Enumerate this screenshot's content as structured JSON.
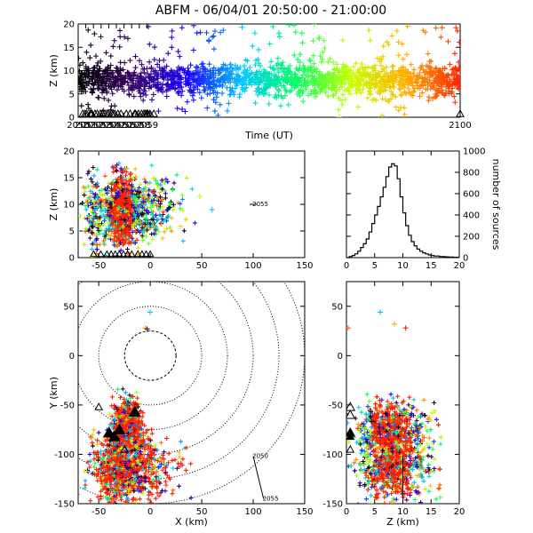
{
  "title": "ABFM - 06/04/01 20:50:00 - 21:00:00",
  "colors": {
    "ramp": [
      "#000000",
      "#3a0066",
      "#1a00ff",
      "#00c8ff",
      "#00ff60",
      "#c8ff00",
      "#ffb000",
      "#ff2000"
    ],
    "tags": "#000000",
    "frame": "#000000"
  },
  "chart_data": [
    {
      "id": "time-height",
      "type": "scatter",
      "xlabel": "Time (UT)",
      "ylabel": "Z (km)",
      "xlim": [
        2050,
        2100
      ],
      "ylim": [
        0,
        20
      ],
      "xticks": [
        "2050",
        "2051",
        "2052",
        "2053",
        "2054",
        "2055",
        "2056",
        "2057",
        "2058",
        "2059",
        "2100"
      ],
      "yticks": [
        "0",
        "5",
        "10",
        "15",
        "20"
      ],
      "color_by": "time",
      "point_count_shown": "about 2000 plotted sources",
      "z_core_range": [
        4,
        12
      ],
      "z_mode": 8,
      "triangle_markers_x": [
        2050.6,
        2050.9,
        2051.1,
        2051.6,
        2051.7,
        2051.8,
        2052.2,
        2052.5,
        2052.9,
        2053.2,
        2053.5,
        2053.8,
        2054.0,
        2054.4,
        2054.6,
        2054.8,
        2055.2,
        2055.6,
        2056.3,
        2056.8,
        2057.4,
        2057.5,
        2057.9,
        2058.3,
        2058.6,
        2058.8,
        2059.0,
        2059.1,
        2059.4,
        2059.9,
        2100.0
      ],
      "reference_line_z": 10
    },
    {
      "id": "x-z",
      "type": "scatter",
      "xlabel": "",
      "ylabel": "Z (km)",
      "xlim": [
        -70,
        150
      ],
      "ylim": [
        0,
        20
      ],
      "xticks": [
        "-50",
        "0",
        "50",
        "100",
        "150"
      ],
      "yticks": [
        "0",
        "5",
        "10",
        "15",
        "20"
      ],
      "color_by": "time",
      "cluster_x_range": [
        -60,
        30
      ],
      "core_x_range": [
        -40,
        -15
      ],
      "station_label": {
        "text": "2055",
        "x": 100,
        "z": 10
      },
      "triangle_markers_x": [
        -55,
        -48,
        -42,
        -38,
        -34,
        -30,
        -26,
        -22,
        -18,
        -12,
        -8,
        -4,
        0
      ]
    },
    {
      "id": "z-histogram",
      "type": "bar",
      "xlabel": "",
      "ylabel": "number of sources",
      "xlim": [
        0,
        20
      ],
      "ylim": [
        0,
        1000
      ],
      "xticks": [
        "0",
        "5",
        "10",
        "15",
        "20"
      ],
      "yticks": [
        "0",
        "200",
        "400",
        "600",
        "800",
        "1000"
      ],
      "bin_width_km": 0.5,
      "bin_starts": [
        0,
        0.5,
        1,
        1.5,
        2,
        2.5,
        3,
        3.5,
        4,
        4.5,
        5,
        5.5,
        6,
        6.5,
        7,
        7.5,
        8,
        8.5,
        9,
        9.5,
        10,
        10.5,
        11,
        11.5,
        12,
        12.5,
        13,
        13.5,
        14,
        14.5,
        15,
        15.5,
        16,
        16.5,
        17,
        17.5,
        18,
        18.5,
        19,
        19.5
      ],
      "values": [
        0,
        10,
        20,
        35,
        60,
        95,
        130,
        175,
        240,
        320,
        400,
        480,
        570,
        660,
        760,
        850,
        880,
        860,
        740,
        570,
        420,
        300,
        210,
        150,
        110,
        80,
        60,
        45,
        35,
        25,
        20,
        15,
        15,
        10,
        10,
        8,
        5,
        5,
        3,
        2
      ]
    },
    {
      "id": "plan-view",
      "type": "scatter",
      "xlabel": "X (km)",
      "ylabel": "Y (km)",
      "xlim": [
        -70,
        150
      ],
      "ylim": [
        -150,
        75
      ],
      "xticks": [
        "-50",
        "0",
        "50",
        "100",
        "150"
      ],
      "yticks": [
        "-150",
        "-100",
        "-50",
        "0",
        "50"
      ],
      "color_by": "time",
      "range_rings_km": [
        25,
        50,
        75,
        100,
        125,
        150
      ],
      "cluster_x_range": [
        -60,
        30
      ],
      "cluster_y_range": [
        -150,
        -40
      ],
      "stations": [
        {
          "x": -50,
          "y": -52,
          "size": "small"
        },
        {
          "x": -40,
          "y": -78,
          "size": "large"
        },
        {
          "x": -35,
          "y": -82,
          "size": "large"
        },
        {
          "x": -30,
          "y": -75,
          "size": "large"
        },
        {
          "x": -15,
          "y": -57,
          "size": "large"
        },
        {
          "x": -25,
          "y": -95,
          "size": "small"
        }
      ],
      "track_labels": [
        {
          "text": "2050",
          "x": 100,
          "y": -102
        },
        {
          "text": "2055",
          "x": 110,
          "y": -145
        }
      ]
    },
    {
      "id": "z-y",
      "type": "scatter",
      "xlabel": "Z (km)",
      "ylabel": "",
      "xlim": [
        0,
        20
      ],
      "ylim": [
        -150,
        75
      ],
      "xticks": [
        "0",
        "5",
        "10",
        "15",
        "20"
      ],
      "yticks": [
        "-150",
        "-100",
        "-50",
        "0",
        "50"
      ],
      "color_by": "time",
      "cluster_z_range": [
        2,
        17
      ],
      "cluster_y_range": [
        -150,
        -40
      ],
      "station_z": 0.2
    }
  ]
}
